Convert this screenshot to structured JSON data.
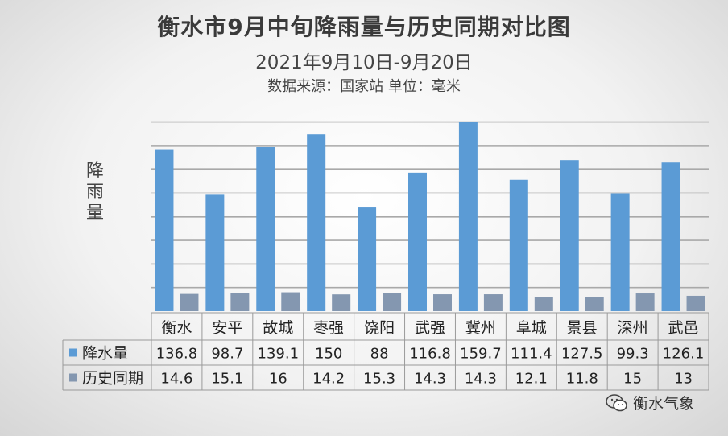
{
  "chart_data": {
    "type": "bar",
    "title": "衡水市9月中旬降雨量与历史同期对比图",
    "subtitle": "2021年9月10日-9月20日",
    "source_note": "数据来源：国家站  单位：毫米",
    "ylabel": "降雨量",
    "categories": [
      "衡水",
      "安平",
      "故城",
      "枣强",
      "饶阳",
      "武强",
      "冀州",
      "阜城",
      "景县",
      "深州",
      "武邑"
    ],
    "series": [
      {
        "name": "降水量",
        "color": "#5b9bd5",
        "values": [
          136.8,
          98.7,
          139.1,
          150,
          88,
          116.8,
          159.7,
          111.4,
          127.5,
          99.3,
          126.1
        ],
        "labels": [
          "136.8",
          "98.7",
          "139.1",
          "150",
          "88",
          "116.8",
          "159.7",
          "111.4",
          "127.5",
          "99.3",
          "126.1"
        ]
      },
      {
        "name": "历史同期",
        "color": "#8497b0",
        "values": [
          14.6,
          15.1,
          16,
          14.2,
          15.3,
          14.3,
          14.3,
          12.1,
          11.8,
          15,
          13
        ],
        "labels": [
          "14.6",
          "15.1",
          "16",
          "14.2",
          "15.3",
          "14.3",
          "14.3",
          "12.1",
          "11.8",
          "15",
          "13"
        ]
      }
    ],
    "ylim": [
      0,
      160
    ],
    "grid": true,
    "legend": "data-table"
  },
  "watermark": {
    "text": "衡水气象",
    "icon": "wechat-icon"
  }
}
